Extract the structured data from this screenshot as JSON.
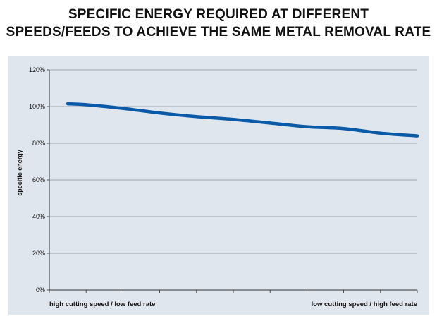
{
  "chart_data": {
    "type": "line",
    "title_lines": [
      "SPECIFIC ENERGY REQUIRED AT DIFFERENT",
      "SPEEDS/FEEDS TO ACHIEVE THE SAME METAL REMOVAL RATE"
    ],
    "ylabel": "specific energy",
    "x_label_left": "high cutting speed / low feed rate",
    "x_label_right": "low cutting speed / high feed rate",
    "ylim": [
      0,
      120
    ],
    "y_ticks": [
      0,
      20,
      40,
      60,
      80,
      100,
      120
    ],
    "y_tick_labels": [
      "0%",
      "20%",
      "40%",
      "60%",
      "80%",
      "100%",
      "120%"
    ],
    "x_tick_count": 10,
    "grid": true,
    "line_color": "#0a5aa8",
    "series": [
      {
        "x": [
          0.5,
          1,
          2,
          3,
          4,
          5,
          6,
          7,
          8,
          9,
          10
        ],
        "values": [
          101.5,
          101,
          99,
          96.5,
          94.5,
          93,
          91,
          89,
          88,
          85.5,
          84
        ]
      }
    ],
    "xlim": [
      0,
      10
    ]
  }
}
